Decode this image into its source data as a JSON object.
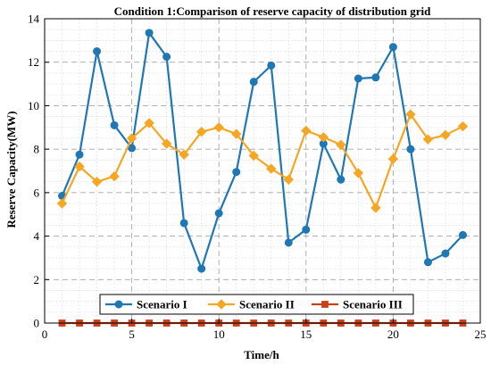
{
  "chart_data": {
    "type": "line",
    "title": "Condition 1:Comparison of reserve capacity of distribution grid",
    "xlabel": "Time/h",
    "ylabel": "Reserve Capacity(MW)",
    "xlim": [
      0,
      25
    ],
    "ylim": [
      0,
      14
    ],
    "xticks": [
      0,
      5,
      10,
      15,
      20,
      25
    ],
    "yticks": [
      0,
      2,
      4,
      6,
      8,
      10,
      12,
      14
    ],
    "grid": true,
    "legend_placement": "bottom-center",
    "x": [
      1,
      2,
      3,
      4,
      5,
      6,
      7,
      8,
      9,
      10,
      11,
      12,
      13,
      14,
      15,
      16,
      17,
      18,
      19,
      20,
      21,
      22,
      23,
      24
    ],
    "series": [
      {
        "name": "Scenario I",
        "color": "#1f77b4",
        "marker": "circle",
        "values": [
          5.85,
          7.75,
          12.5,
          9.1,
          8.05,
          13.35,
          12.25,
          4.6,
          2.5,
          5.05,
          6.95,
          11.1,
          11.85,
          3.7,
          4.3,
          8.25,
          6.6,
          11.25,
          11.3,
          12.7,
          8.0,
          2.8,
          3.2,
          4.05
        ]
      },
      {
        "name": "Scenario II",
        "color": "#f5a623",
        "marker": "diamond",
        "values": [
          5.5,
          7.2,
          6.5,
          6.75,
          8.5,
          9.2,
          8.25,
          7.75,
          8.8,
          9.0,
          8.7,
          7.7,
          7.1,
          6.6,
          8.85,
          8.55,
          8.2,
          6.9,
          5.3,
          7.55,
          9.6,
          8.45,
          8.65,
          9.05
        ]
      },
      {
        "name": "Scenario III",
        "color": "#c8401b",
        "marker": "square",
        "values": [
          0,
          0,
          0,
          0,
          0,
          0,
          0,
          0,
          0,
          0,
          0,
          0,
          0,
          0,
          0,
          0,
          0,
          0,
          0,
          0,
          0,
          0,
          0,
          0
        ]
      }
    ]
  }
}
